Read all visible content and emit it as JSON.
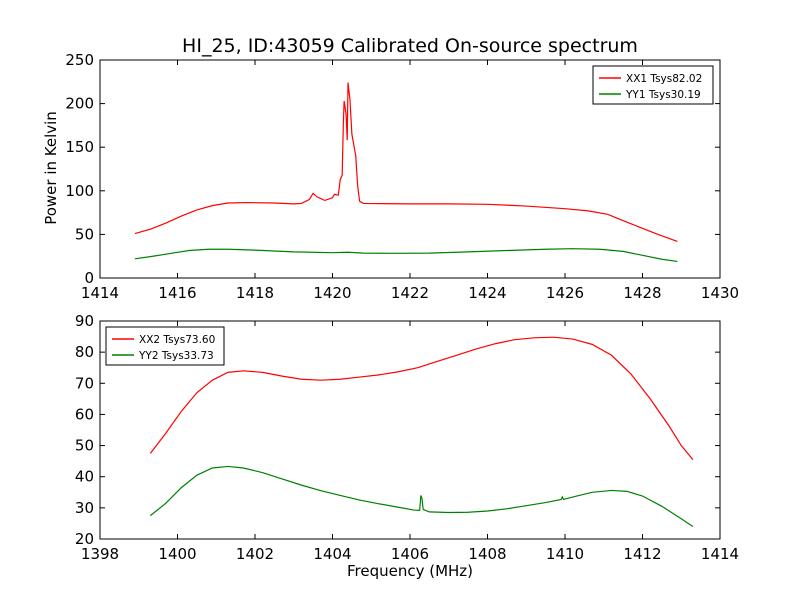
{
  "chart_data": [
    {
      "type": "line",
      "title": "HI_25, ID:43059 Calibrated On-source spectrum",
      "xlabel": "",
      "ylabel": "Power in Kelvin",
      "xlim": [
        1414,
        1430
      ],
      "ylim": [
        0,
        250
      ],
      "xticks": [
        1414,
        1416,
        1418,
        1420,
        1422,
        1424,
        1426,
        1428,
        1430
      ],
      "yticks": [
        0,
        50,
        100,
        150,
        200,
        250
      ],
      "legend": "top-right",
      "grid": false,
      "series": [
        {
          "name": "XX1 Tsys82.02",
          "color": "#ff0000",
          "points": [
            [
              1414.9,
              51
            ],
            [
              1415.3,
              56
            ],
            [
              1415.7,
              63
            ],
            [
              1416.1,
              71
            ],
            [
              1416.5,
              78
            ],
            [
              1416.9,
              83
            ],
            [
              1417.3,
              86
            ],
            [
              1417.8,
              86.5
            ],
            [
              1418.5,
              86
            ],
            [
              1419.0,
              85
            ],
            [
              1419.2,
              85.5
            ],
            [
              1419.4,
              90
            ],
            [
              1419.5,
              97
            ],
            [
              1419.6,
              93
            ],
            [
              1419.8,
              89
            ],
            [
              1420.0,
              92
            ],
            [
              1420.05,
              96
            ],
            [
              1420.15,
              95
            ],
            [
              1420.2,
              113
            ],
            [
              1420.25,
              118
            ],
            [
              1420.28,
              178
            ],
            [
              1420.3,
              203
            ],
            [
              1420.35,
              188
            ],
            [
              1420.38,
              158
            ],
            [
              1420.4,
              224
            ],
            [
              1420.45,
              205
            ],
            [
              1420.5,
              165
            ],
            [
              1420.6,
              140
            ],
            [
              1420.65,
              105
            ],
            [
              1420.7,
              88
            ],
            [
              1420.8,
              85.5
            ],
            [
              1422.0,
              85
            ],
            [
              1423.0,
              85
            ],
            [
              1424.0,
              84.5
            ],
            [
              1425.0,
              82.5
            ],
            [
              1426.0,
              79.5
            ],
            [
              1426.6,
              77
            ],
            [
              1427.1,
              73
            ],
            [
              1427.6,
              64
            ],
            [
              1428.0,
              57
            ],
            [
              1428.4,
              50
            ],
            [
              1428.9,
              42
            ]
          ]
        },
        {
          "name": "YY1 Tsys30.19",
          "color": "#008000",
          "points": [
            [
              1414.9,
              22
            ],
            [
              1415.3,
              24.5
            ],
            [
              1415.8,
              28
            ],
            [
              1416.3,
              31.5
            ],
            [
              1416.8,
              33
            ],
            [
              1417.3,
              33
            ],
            [
              1418.0,
              32
            ],
            [
              1419.0,
              30
            ],
            [
              1420.0,
              29
            ],
            [
              1420.4,
              29.5
            ],
            [
              1420.8,
              28.5
            ],
            [
              1421.5,
              28.3
            ],
            [
              1422.5,
              28.5
            ],
            [
              1423.5,
              30
            ],
            [
              1424.5,
              31.5
            ],
            [
              1425.5,
              33
            ],
            [
              1426.2,
              33.6
            ],
            [
              1426.9,
              33
            ],
            [
              1427.5,
              30.5
            ],
            [
              1428.0,
              26
            ],
            [
              1428.5,
              21.5
            ],
            [
              1428.9,
              19
            ]
          ]
        }
      ]
    },
    {
      "type": "line",
      "title": "",
      "xlabel": "Frequency (MHz)",
      "ylabel": "",
      "xlim": [
        1398,
        1414
      ],
      "ylim": [
        20,
        90
      ],
      "xticks": [
        1398,
        1400,
        1402,
        1404,
        1406,
        1408,
        1410,
        1412,
        1414
      ],
      "yticks": [
        20,
        30,
        40,
        50,
        60,
        70,
        80,
        90
      ],
      "legend": "top-left",
      "grid": false,
      "series": [
        {
          "name": "XX2 Tsys73.60",
          "color": "#ff0000",
          "points": [
            [
              1399.3,
              47.5
            ],
            [
              1399.7,
              54
            ],
            [
              1400.1,
              61
            ],
            [
              1400.5,
              67
            ],
            [
              1400.9,
              71
            ],
            [
              1401.3,
              73.5
            ],
            [
              1401.7,
              74
            ],
            [
              1402.2,
              73.5
            ],
            [
              1402.7,
              72.3
            ],
            [
              1403.2,
              71.3
            ],
            [
              1403.7,
              71
            ],
            [
              1404.2,
              71.3
            ],
            [
              1404.7,
              72
            ],
            [
              1405.2,
              72.7
            ],
            [
              1405.7,
              73.7
            ],
            [
              1406.2,
              75
            ],
            [
              1406.7,
              77
            ],
            [
              1407.2,
              79
            ],
            [
              1407.7,
              81
            ],
            [
              1408.2,
              82.7
            ],
            [
              1408.7,
              84
            ],
            [
              1409.2,
              84.6
            ],
            [
              1409.7,
              84.8
            ],
            [
              1410.2,
              84.2
            ],
            [
              1410.7,
              82.5
            ],
            [
              1411.2,
              79
            ],
            [
              1411.7,
              73
            ],
            [
              1412.2,
              65
            ],
            [
              1412.7,
              56
            ],
            [
              1413.0,
              50
            ],
            [
              1413.3,
              45.5
            ]
          ]
        },
        {
          "name": "YY2 Tsys33.73",
          "color": "#008000",
          "points": [
            [
              1399.3,
              27.5
            ],
            [
              1399.7,
              31.5
            ],
            [
              1400.1,
              36.5
            ],
            [
              1400.5,
              40.5
            ],
            [
              1400.9,
              42.8
            ],
            [
              1401.3,
              43.3
            ],
            [
              1401.7,
              42.8
            ],
            [
              1402.2,
              41.3
            ],
            [
              1402.7,
              39.3
            ],
            [
              1403.2,
              37.3
            ],
            [
              1403.7,
              35.5
            ],
            [
              1404.2,
              34
            ],
            [
              1404.7,
              32.5
            ],
            [
              1405.2,
              31.3
            ],
            [
              1405.7,
              30.2
            ],
            [
              1406.1,
              29.3
            ],
            [
              1406.25,
              29.2
            ],
            [
              1406.28,
              34
            ],
            [
              1406.31,
              33
            ],
            [
              1406.34,
              29.5
            ],
            [
              1406.5,
              28.7
            ],
            [
              1407.0,
              28.5
            ],
            [
              1407.5,
              28.6
            ],
            [
              1408.0,
              29
            ],
            [
              1408.5,
              29.7
            ],
            [
              1409.0,
              30.7
            ],
            [
              1409.5,
              31.7
            ],
            [
              1409.9,
              32.7
            ],
            [
              1409.93,
              33.5
            ],
            [
              1409.96,
              32.7
            ],
            [
              1410.3,
              33.8
            ],
            [
              1410.7,
              35
            ],
            [
              1411.2,
              35.6
            ],
            [
              1411.6,
              35.3
            ],
            [
              1412.0,
              33.8
            ],
            [
              1412.5,
              30.5
            ],
            [
              1413.0,
              26.5
            ],
            [
              1413.3,
              24
            ]
          ]
        }
      ]
    }
  ]
}
